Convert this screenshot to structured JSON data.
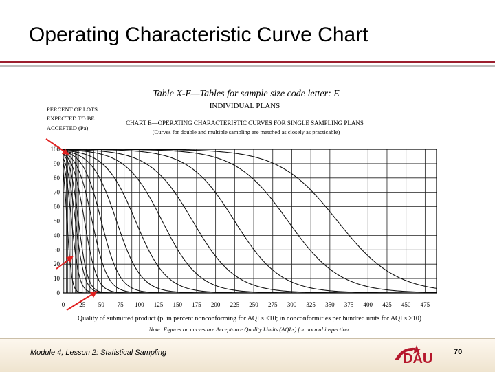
{
  "slide": {
    "title": "Operating Characteristic Curve Chart",
    "footer": "Module 4, Lesson 2: Statistical Sampling",
    "page_number": "70",
    "logo_text": "DAU"
  },
  "chart_data": {
    "type": "line",
    "table_title": "Table X-E—Tables for sample size code letter: E",
    "plans_title": "INDIVIDUAL PLANS",
    "chart_title": "CHART E—OPERATING CHARACTERISTIC CURVES FOR SINGLE SAMPLING PLANS",
    "chart_subtitle": "(Curves for double and multiple sampling are matched as closely as practicable)",
    "ylabel": [
      "PERCENT OF LOTS",
      "EXPECTED TO BE",
      "ACCEPTED (Pa)"
    ],
    "xlabel": "Quality of submitted product (p. in percent nonconforming for AQLs ≤10; in nonconformities per hundred units for AQLs >10)",
    "note": "Note: Figures on curves are Acceptance Quality Limits (AQLs) for normal inspection.",
    "xlim": [
      0,
      490
    ],
    "ylim": [
      0,
      100
    ],
    "xticks": [
      0,
      25,
      50,
      75,
      100,
      125,
      150,
      175,
      200,
      225,
      250,
      275,
      300,
      325,
      350,
      375,
      400,
      425,
      450,
      475
    ],
    "yticks": [
      0,
      10,
      20,
      30,
      40,
      50,
      60,
      70,
      80,
      90,
      100
    ],
    "grid": true,
    "series": [
      {
        "name": "",
        "x50": 5,
        "spread": 3,
        "label_x": 4
      },
      {
        "name": "",
        "x50": 11,
        "spread": 5,
        "label_x": 9
      },
      {
        "name": "",
        "x50": 16,
        "spread": 6,
        "label_x": 14
      },
      {
        "name": "",
        "x50": 20,
        "spread": 6,
        "label_x": 19
      },
      {
        "name": "",
        "x50": 28,
        "spread": 8,
        "label_x": 27
      },
      {
        "name": "",
        "x50": 38,
        "spread": 10,
        "label_x": 36
      },
      {
        "name": "",
        "x50": 50,
        "spread": 12,
        "label_x": 48
      },
      {
        "name": "",
        "x50": 70,
        "spread": 16,
        "label_x": 68
      },
      {
        "name": "",
        "x50": 95,
        "spread": 20,
        "label_x": 90
      },
      {
        "name": "",
        "x50": 130,
        "spread": 24,
        "label_x": 123
      },
      {
        "name": "",
        "x50": 170,
        "spread": 28,
        "label_x": 158
      },
      {
        "name": "",
        "x50": 225,
        "spread": 30,
        "label_x": 205
      },
      {
        "name": "",
        "x50": 295,
        "spread": 34,
        "label_x": 290
      },
      {
        "name": "",
        "x50": 360,
        "spread": 38,
        "label_x": 385
      }
    ]
  }
}
